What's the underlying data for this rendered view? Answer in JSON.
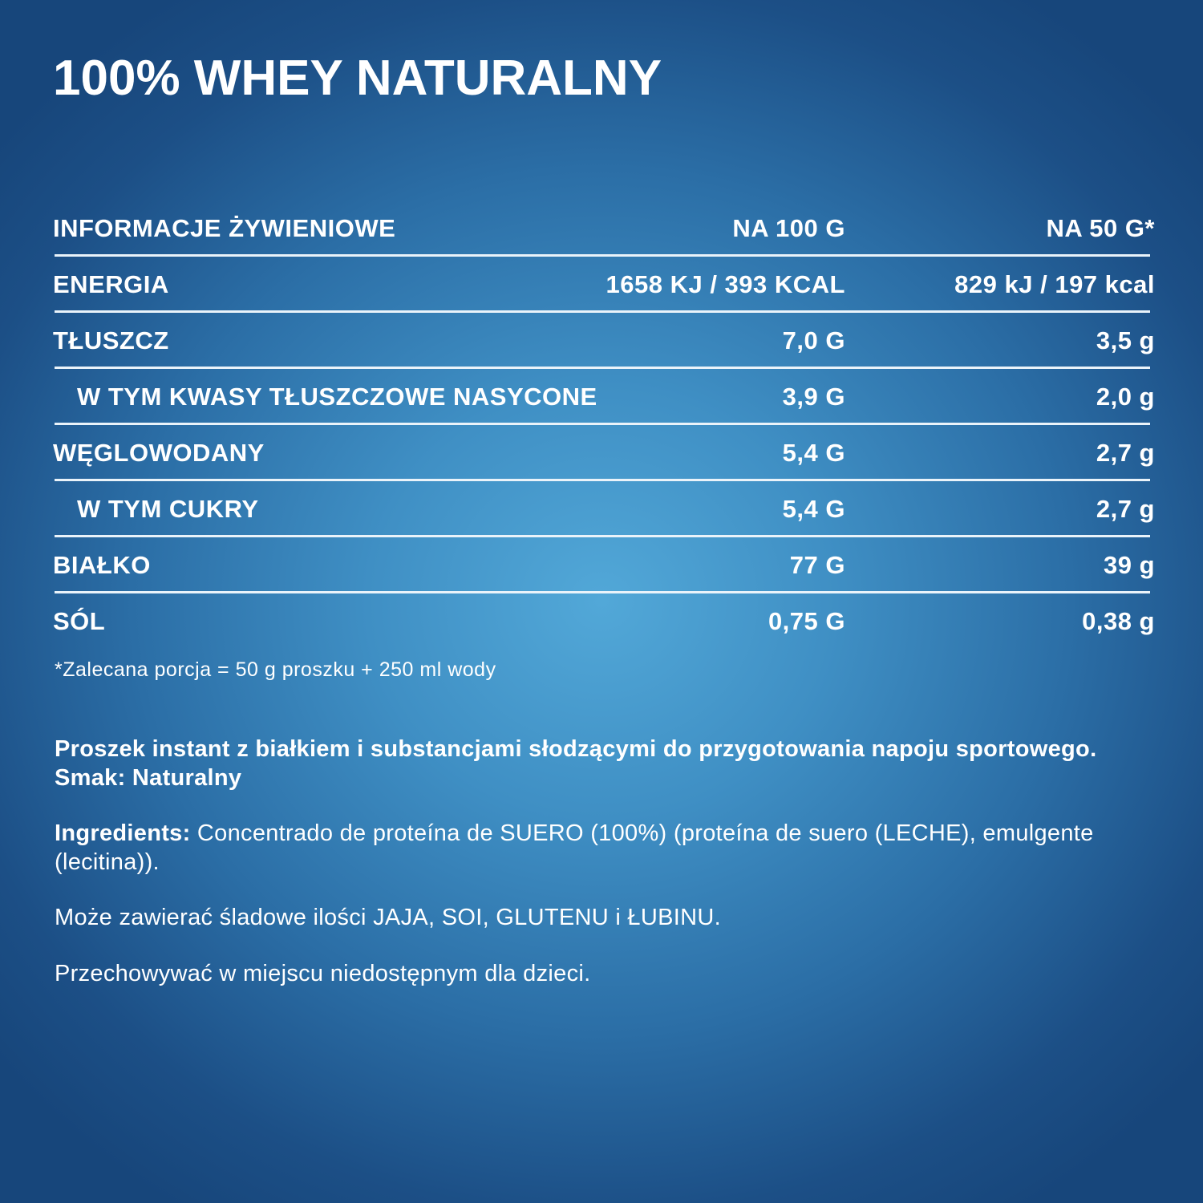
{
  "title": "100% WHEY NATURALNY",
  "nutrition": {
    "header": {
      "label": "INFORMACJE ŻYWIENIOWE",
      "per100": "NA 100 G",
      "per50": "NA 50 G*"
    },
    "rows": [
      {
        "label": "ENERGIA",
        "per100": "1658 KJ / 393 KCAL",
        "per50": "829 kJ / 197 kcal"
      },
      {
        "label": "TŁUSZCZ",
        "per100": "7,0 G",
        "per50": "3,5 g"
      },
      {
        "label": "W TYM KWASY TŁUSZCZOWE NASYCONE",
        "per100": "3,9 G",
        "per50": "2,0 g"
      },
      {
        "label": "WĘGLOWODANY",
        "per100": "5,4 G",
        "per50": "2,7 g"
      },
      {
        "label": "W TYM CUKRY",
        "per100": "5,4 G",
        "per50": "2,7 g"
      },
      {
        "label": "BIAŁKO",
        "per100": "77 G",
        "per50": "39 g"
      },
      {
        "label": "SÓL",
        "per100": "0,75 G",
        "per50": "0,38 g"
      }
    ]
  },
  "footnote": "*Zalecana porcja = 50 g proszku + 250 ml wody",
  "description": "Proszek instant z białkiem i substancjami słodzącymi do przygotowania napoju sportowego. Smak: Naturalny",
  "ingredients": {
    "label": "Ingredients:",
    "text": " Concentrado de proteína de SUERO (100%) (proteína de suero (LECHE), emulgente (lecitina))."
  },
  "allergens": "Może zawierać śladowe ilości JAJA, SOI, GLUTENU i ŁUBINU.",
  "storage": "Przechowywać w miejscu niedostępnym dla dzieci.",
  "colors": {
    "background_center": "#52a8d8",
    "background_edge": "#17467b",
    "text": "#ffffff"
  }
}
